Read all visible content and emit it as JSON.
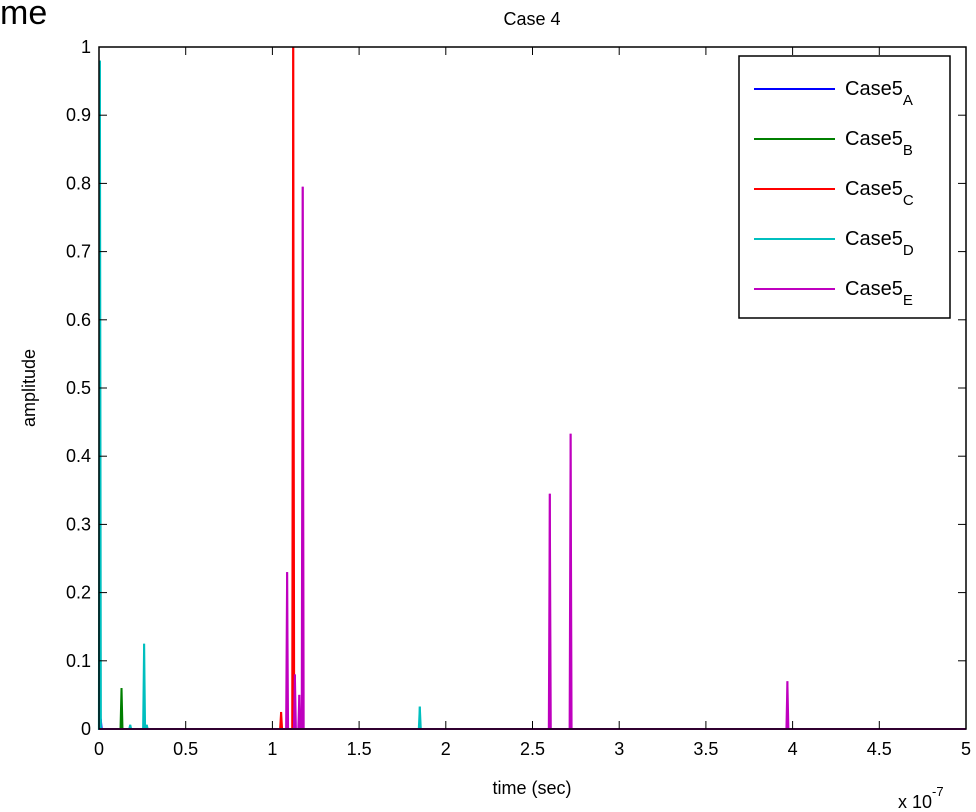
{
  "corner_text": "me",
  "chart_data": {
    "type": "line",
    "title": "Case 4",
    "xlabel": "time (sec)",
    "ylabel": "amplitude",
    "x_multiplier": "x 10",
    "x_multiplier_exp": "-7",
    "xlim": [
      0,
      5
    ],
    "ylim": [
      0,
      1
    ],
    "x_ticks": [
      0,
      0.5,
      1,
      1.5,
      2,
      2.5,
      3,
      3.5,
      4,
      4.5,
      5
    ],
    "x_tick_labels": [
      "0",
      "0.5",
      "1",
      "1.5",
      "2",
      "2.5",
      "3",
      "3.5",
      "4",
      "4.5",
      "5"
    ],
    "y_ticks": [
      0,
      0.1,
      0.2,
      0.3,
      0.4,
      0.5,
      0.6,
      0.7,
      0.8,
      0.9,
      1
    ],
    "y_tick_labels": [
      "0",
      "0.1",
      "0.2",
      "0.3",
      "0.4",
      "0.5",
      "0.6",
      "0.7",
      "0.8",
      "0.9",
      "1"
    ],
    "grid": false,
    "legend_position": "top-right",
    "series": [
      {
        "name": "Case5",
        "subscript": "A",
        "color": "#0000ff",
        "spikes": [
          [
            0.01,
            0.015
          ]
        ]
      },
      {
        "name": "Case5",
        "subscript": "B",
        "color": "#007f00",
        "spikes": [
          [
            0.13,
            0.06
          ]
        ]
      },
      {
        "name": "Case5",
        "subscript": "C",
        "color": "#ff0000",
        "spikes": [
          [
            1.05,
            0.025
          ],
          [
            1.12,
            1.0
          ]
        ]
      },
      {
        "name": "Case5",
        "subscript": "D",
        "color": "#00bfbf",
        "spikes": [
          [
            0.005,
            0.98
          ],
          [
            0.18,
            0.006
          ],
          [
            0.26,
            0.125
          ],
          [
            0.275,
            0.006
          ],
          [
            1.85,
            0.033
          ]
        ]
      },
      {
        "name": "Case5",
        "subscript": "E",
        "color": "#bf00bf",
        "spikes": [
          [
            1.085,
            0.23
          ],
          [
            1.13,
            0.08
          ],
          [
            1.155,
            0.05
          ],
          [
            1.175,
            0.795
          ],
          [
            2.6,
            0.345
          ],
          [
            2.72,
            0.433
          ],
          [
            3.97,
            0.07
          ]
        ]
      }
    ]
  }
}
